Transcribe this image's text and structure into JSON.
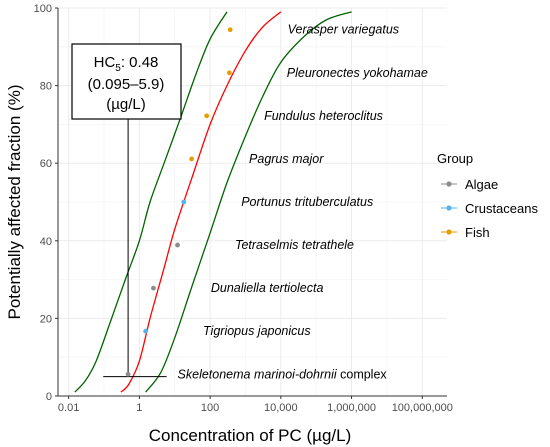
{
  "chart_data": {
    "type": "line",
    "title": "",
    "xlabel": "Concentration of PC (µg/L)",
    "ylabel": "Potentially affected fraction (%)",
    "x_scale": "log10",
    "xlim": [
      0.005,
      500000000
    ],
    "ylim": [
      0,
      100
    ],
    "x_ticks": [
      0.01,
      1,
      100,
      10000,
      1000000,
      100000000
    ],
    "x_tick_labels": [
      "0.01",
      "1",
      "100",
      "10,000",
      "1,000,000",
      "100,000,000"
    ],
    "y_ticks": [
      0,
      20,
      40,
      60,
      80,
      100
    ],
    "y_tick_labels": [
      "0",
      "20",
      "40",
      "60",
      "80",
      "100"
    ],
    "grid": true,
    "legend": {
      "title": "Group",
      "position": "right",
      "entries": [
        {
          "label": "Algae",
          "color": "#8c8c8c"
        },
        {
          "label": "Crustaceans",
          "color": "#56b4e9"
        },
        {
          "label": "Fish",
          "color": "#e69f00"
        }
      ]
    },
    "fitted_curve": {
      "color": "#ff0000",
      "x": [
        0.3,
        0.5,
        1,
        2,
        5,
        10,
        30,
        100,
        300,
        1000,
        3000,
        10000
      ],
      "y": [
        1,
        3,
        9,
        20,
        33,
        43,
        56,
        70,
        80,
        89,
        95,
        99
      ]
    },
    "lower_bound": {
      "color": "#006400",
      "x": [
        0.015,
        0.03,
        0.06,
        0.15,
        0.4,
        1,
        2,
        5,
        15,
        40,
        100,
        300
      ],
      "y": [
        1,
        4,
        9,
        19,
        30,
        40,
        50,
        60,
        72,
        83,
        92,
        99
      ]
    },
    "upper_bound": {
      "color": "#006400",
      "x": [
        1.5,
        4,
        10,
        30,
        100,
        300,
        1000,
        3000,
        10000,
        50000,
        200000,
        1000000
      ],
      "y": [
        1,
        6,
        15,
        28,
        42,
        55,
        67,
        77,
        86,
        93,
        97,
        99
      ]
    },
    "species": [
      {
        "name": "Skeletonema marinoi-dohrnii",
        "suffix": "complex",
        "group": "Algae",
        "x": 0.48,
        "y": 5.6
      },
      {
        "name": "Tigriopus japonicus",
        "suffix": "",
        "group": "Crustaceans",
        "x": 1.5,
        "y": 16.7
      },
      {
        "name": "Dunaliella tertiolecta",
        "suffix": "",
        "group": "Algae",
        "x": 2.5,
        "y": 27.8
      },
      {
        "name": "Tetraselmis tetrathele",
        "suffix": "",
        "group": "Algae",
        "x": 12,
        "y": 38.9
      },
      {
        "name": "Portunus trituberculatus",
        "suffix": "",
        "group": "Crustaceans",
        "x": 18,
        "y": 50.0
      },
      {
        "name": "Pagrus major",
        "suffix": "",
        "group": "Fish",
        "x": 30,
        "y": 61.1
      },
      {
        "name": "Fundulus heteroclitus",
        "suffix": "",
        "group": "Fish",
        "x": 80,
        "y": 72.2
      },
      {
        "name": "Pleuronectes yokohamae",
        "suffix": "",
        "group": "Fish",
        "x": 350,
        "y": 83.3
      },
      {
        "name": "Verasper variegatus",
        "suffix": "",
        "group": "Fish",
        "x": 370,
        "y": 94.4
      }
    ],
    "hc5": {
      "label": "HC",
      "subscript": "5",
      "value_text": ": 0.48",
      "ci_text": "(0.095–5.9)",
      "unit_text": "(µg/L)",
      "x": 0.48,
      "x_low": 0.095,
      "x_high": 5.9,
      "y": 5
    }
  }
}
